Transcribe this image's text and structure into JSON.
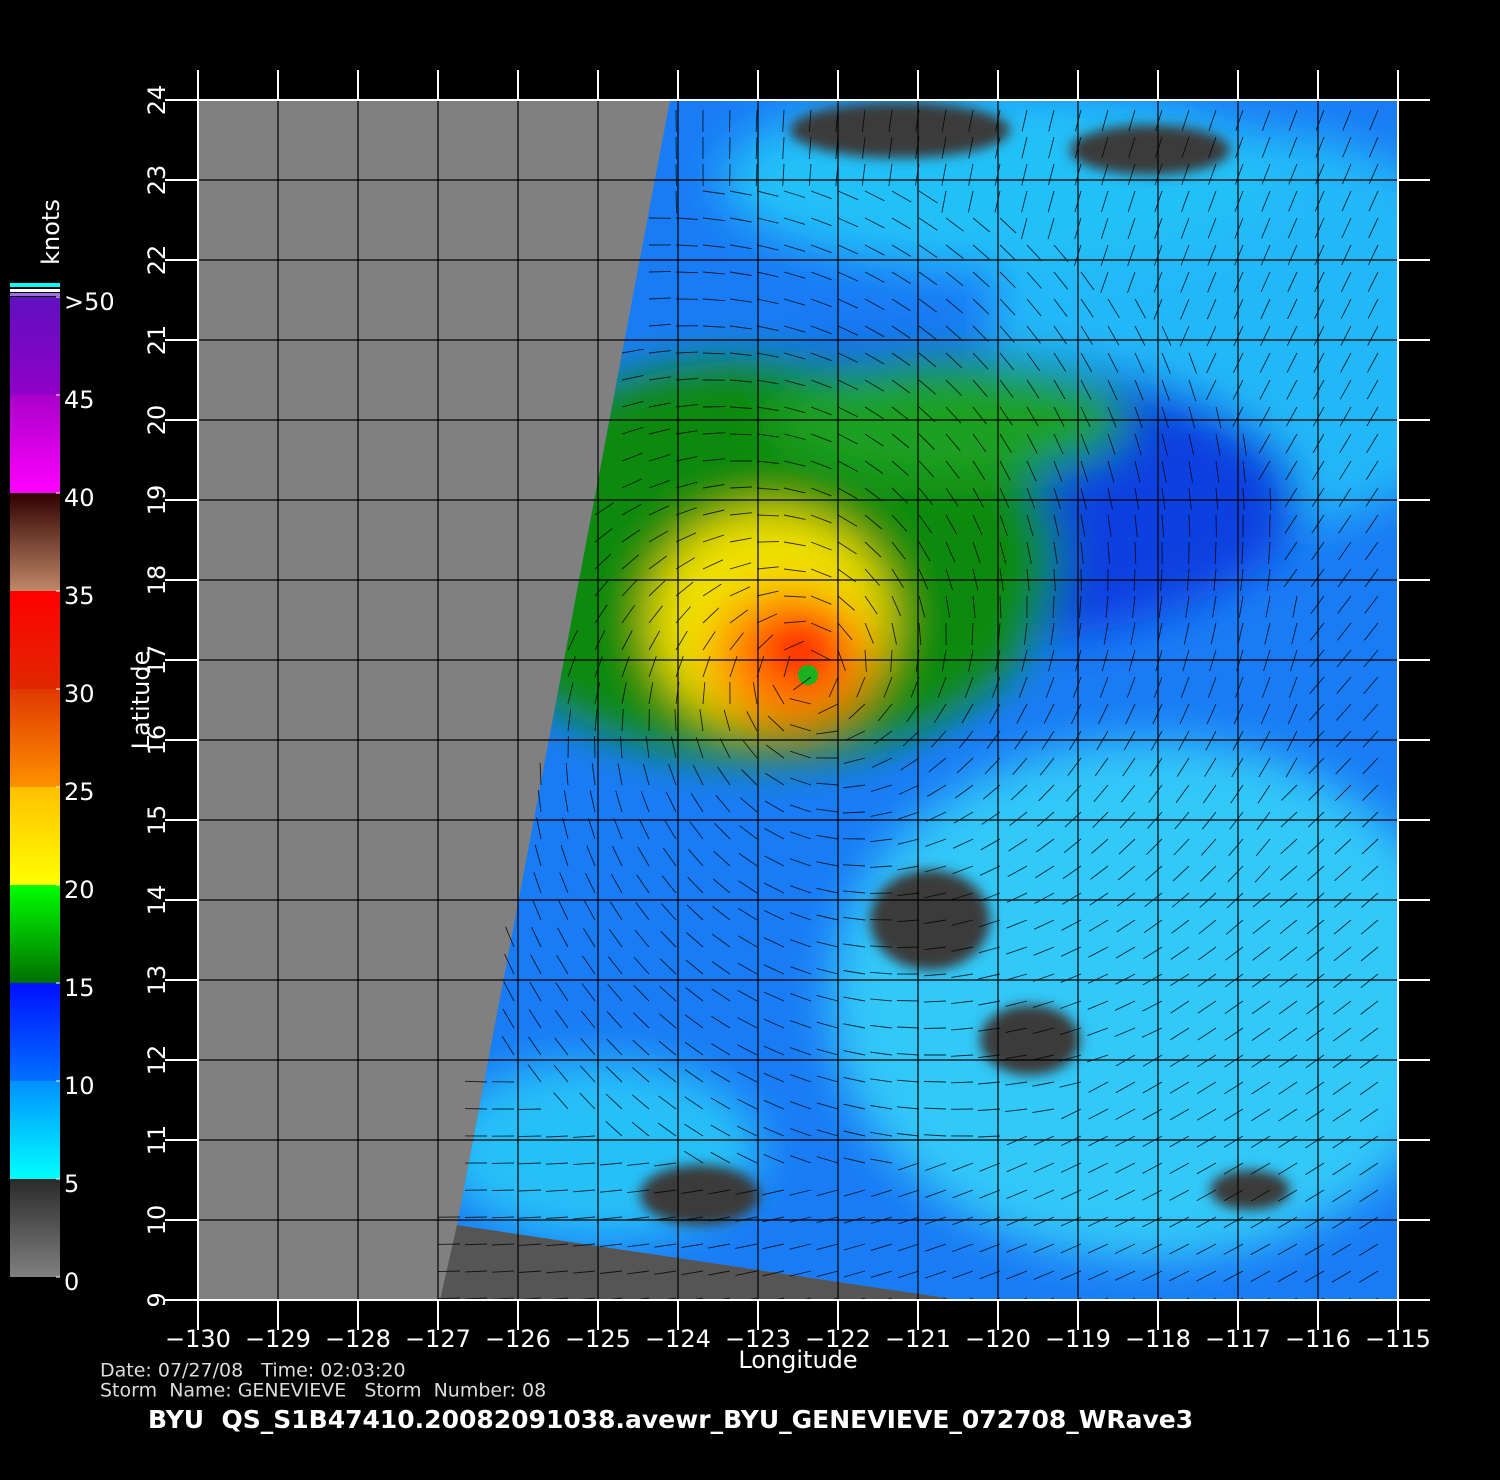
{
  "chart_data": {
    "type": "map",
    "x_label": "Longitude",
    "y_label": "Latitude",
    "xlim": [
      -130,
      -115
    ],
    "xticks": [
      {
        "value": -130,
        "label": "−130"
      },
      {
        "value": -129,
        "label": "−129"
      },
      {
        "value": -128,
        "label": "−128"
      },
      {
        "value": -127,
        "label": "−127"
      },
      {
        "value": -126,
        "label": "−126"
      },
      {
        "value": -125,
        "label": "−125"
      },
      {
        "value": -124,
        "label": "−124"
      },
      {
        "value": -123,
        "label": "−123"
      },
      {
        "value": -122,
        "label": "−122"
      },
      {
        "value": -121,
        "label": "−121"
      },
      {
        "value": -120,
        "label": "−120"
      },
      {
        "value": -119,
        "label": "−119"
      },
      {
        "value": -118,
        "label": "−118"
      },
      {
        "value": -117,
        "label": "−117"
      },
      {
        "value": -116,
        "label": "−116"
      },
      {
        "value": -115,
        "label": "−115"
      }
    ],
    "ylim": [
      9,
      24
    ],
    "yticks": [
      9,
      10,
      11,
      12,
      13,
      14,
      15,
      16,
      17,
      18,
      19,
      20,
      21,
      22,
      23,
      24
    ],
    "grid": true,
    "colorbar": {
      "label": "knots",
      "lim": [
        0,
        50
      ],
      "ticks": [
        0,
        5,
        10,
        15,
        20,
        25,
        30,
        35,
        40,
        {
          "value": 45,
          "label": "45"
        },
        {
          "value": 50,
          "label": ">50"
        }
      ],
      "colors": [
        [
          "#808080",
          "#2a2a2a"
        ],
        [
          "#00ffff",
          "#0090ff"
        ],
        [
          "#0070ff",
          "#0010ff"
        ],
        [
          "#007000",
          "#00ff00"
        ],
        [
          "#ffff00",
          "#ffc000"
        ],
        [
          "#ff9000",
          "#e03800"
        ],
        [
          "#e02800",
          "#ff0000"
        ],
        [
          "#c08868",
          "#300000"
        ],
        [
          "#ff00ff",
          "#a800c8"
        ],
        [
          "#9000c8",
          "#6010c0"
        ]
      ]
    },
    "date_line": "Date: 07/27/08   Time: 02:03:20",
    "storm_line": "Storm  Name: GENEVIEVE   Storm  Number: 08",
    "file_line": "BYU  QS_S1B47410.20082091038.avewr_BYU_GENEVIEVE_072708_WRave3"
  }
}
